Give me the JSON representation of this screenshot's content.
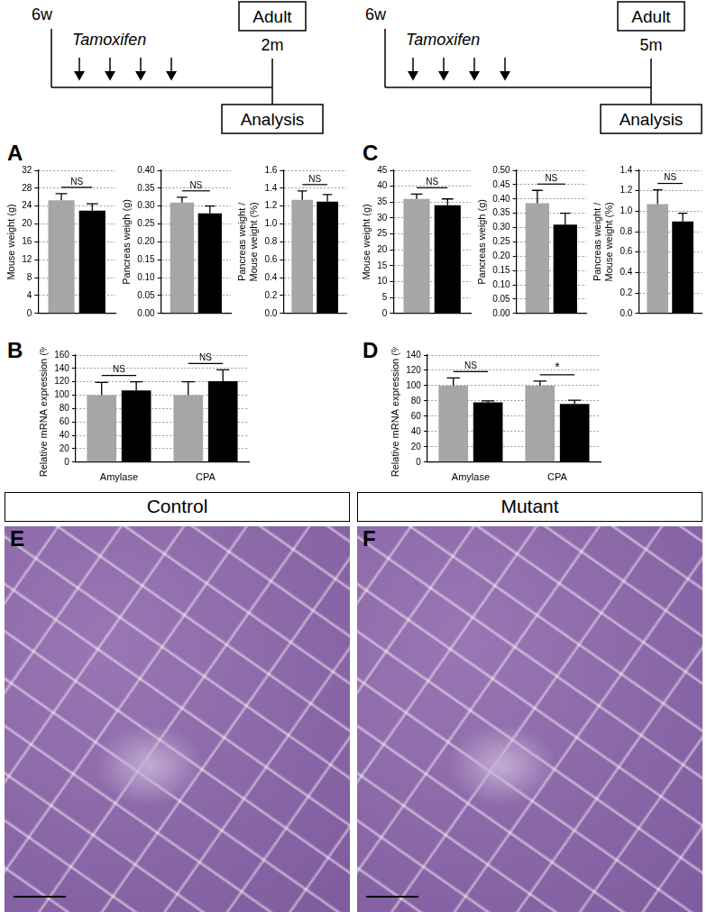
{
  "timelines": [
    {
      "start": "6w",
      "treatment": "Tamoxifen",
      "stage": "Adult",
      "end": "2m",
      "endpoint": "Analysis"
    },
    {
      "start": "6w",
      "treatment": "Tamoxifen",
      "stage": "Adult",
      "end": "5m",
      "endpoint": "Analysis"
    }
  ],
  "chart_data": [
    {
      "panel": "A",
      "type": "bar",
      "y_label": "Mouse weight (g)",
      "categories": [
        null
      ],
      "series": [
        {
          "color": "#a6a6a6",
          "values": [
            25.3
          ],
          "errors": [
            1.5
          ]
        },
        {
          "color": "#000000",
          "values": [
            23.0
          ],
          "errors": [
            1.5
          ]
        }
      ],
      "significance": [
        "NS"
      ],
      "ylim": [
        0,
        32
      ],
      "yticks": [
        0,
        4,
        8,
        12,
        16,
        20,
        24,
        28,
        32
      ],
      "grid": true
    },
    {
      "type": "bar",
      "y_label": "Pancreas weigh (g)",
      "categories": [
        null
      ],
      "series": [
        {
          "color": "#a6a6a6",
          "values": [
            0.31
          ],
          "errors": [
            0.015
          ]
        },
        {
          "color": "#000000",
          "values": [
            0.28
          ],
          "errors": [
            0.02
          ]
        }
      ],
      "significance": [
        "NS"
      ],
      "ylim": [
        0,
        0.4
      ],
      "yticks": [
        {
          "value": 0,
          "label": "0.00"
        },
        {
          "value": 0.05,
          "label": "0.05"
        },
        {
          "value": 0.1,
          "label": "0.10"
        },
        {
          "value": 0.15,
          "label": "0.15"
        },
        {
          "value": 0.2,
          "label": "0.20"
        },
        {
          "value": 0.25,
          "label": "0.25"
        },
        {
          "value": 0.3,
          "label": "0.30"
        },
        {
          "value": 0.35,
          "label": "0.35"
        },
        {
          "value": 0.4,
          "label": "0.40"
        }
      ],
      "grid": true
    },
    {
      "type": "bar",
      "y_label": "Pancreas weight / Mouse weight (%)",
      "categories": [
        null
      ],
      "series": [
        {
          "color": "#a6a6a6",
          "values": [
            1.27
          ],
          "errors": [
            0.1
          ]
        },
        {
          "color": "#000000",
          "values": [
            1.25
          ],
          "errors": [
            0.08
          ]
        }
      ],
      "significance": [
        "NS"
      ],
      "ylim": [
        0,
        1.6
      ],
      "yticks": [
        {
          "value": 0,
          "label": "0.0"
        },
        {
          "value": 0.2,
          "label": "0.2"
        },
        {
          "value": 0.4,
          "label": "0.4"
        },
        {
          "value": 0.6,
          "label": "0.6"
        },
        {
          "value": 0.8,
          "label": "0.8"
        },
        {
          "value": 1,
          "label": "1.0"
        },
        {
          "value": 1.2,
          "label": "1.2"
        },
        {
          "value": 1.4,
          "label": "1.4"
        },
        {
          "value": 1.6,
          "label": "1.6"
        }
      ],
      "grid": true
    },
    {
      "panel": "C",
      "type": "bar",
      "y_label": "Mouse weight (g)",
      "categories": [
        null
      ],
      "series": [
        {
          "color": "#a6a6a6",
          "values": [
            36.0
          ],
          "errors": [
            1.5
          ]
        },
        {
          "color": "#000000",
          "values": [
            34.0
          ],
          "errors": [
            2.0
          ]
        }
      ],
      "significance": [
        "NS"
      ],
      "ylim": [
        0,
        45
      ],
      "yticks": [
        0,
        5,
        10,
        15,
        20,
        25,
        30,
        35,
        40,
        45
      ],
      "grid": true
    },
    {
      "type": "bar",
      "y_label": "Pancreas weigh (g)",
      "categories": [
        null
      ],
      "series": [
        {
          "color": "#a6a6a6",
          "values": [
            0.385
          ],
          "errors": [
            0.045
          ]
        },
        {
          "color": "#000000",
          "values": [
            0.31
          ],
          "errors": [
            0.04
          ]
        }
      ],
      "significance": [
        "NS"
      ],
      "ylim": [
        0,
        0.5
      ],
      "yticks": [
        {
          "value": 0,
          "label": "0.00"
        },
        {
          "value": 0.05,
          "label": "0.05"
        },
        {
          "value": 0.1,
          "label": "0.10"
        },
        {
          "value": 0.15,
          "label": "0.15"
        },
        {
          "value": 0.2,
          "label": "0.20"
        },
        {
          "value": 0.25,
          "label": "0.25"
        },
        {
          "value": 0.3,
          "label": "0.30"
        },
        {
          "value": 0.35,
          "label": "0.35"
        },
        {
          "value": 0.4,
          "label": "0.40"
        },
        {
          "value": 0.45,
          "label": "0.45"
        },
        {
          "value": 0.5,
          "label": "0.50"
        }
      ],
      "grid": true
    },
    {
      "type": "bar",
      "y_label": "Pancreas weight / Mouse weight (%)",
      "categories": [
        null
      ],
      "series": [
        {
          "color": "#a6a6a6",
          "values": [
            1.07
          ],
          "errors": [
            0.14
          ]
        },
        {
          "color": "#000000",
          "values": [
            0.9
          ],
          "errors": [
            0.08
          ]
        }
      ],
      "significance": [
        "NS"
      ],
      "ylim": [
        0,
        1.4
      ],
      "yticks": [
        {
          "value": 0,
          "label": "0.0"
        },
        {
          "value": 0.2,
          "label": "0.2"
        },
        {
          "value": 0.4,
          "label": "0.4"
        },
        {
          "value": 0.6,
          "label": "0.6"
        },
        {
          "value": 0.8,
          "label": "0.8"
        },
        {
          "value": 1,
          "label": "1.0"
        },
        {
          "value": 1.2,
          "label": "1.2"
        },
        {
          "value": 1.4,
          "label": "1.4"
        }
      ],
      "grid": true
    },
    {
      "panel": "B",
      "type": "bar",
      "y_label": "Relative mRNA expression (%)",
      "categories": [
        "Amylase",
        "CPA"
      ],
      "series": [
        {
          "color": "#a6a6a6",
          "values": [
            100,
            100
          ],
          "errors": [
            19,
            20
          ]
        },
        {
          "color": "#000000",
          "values": [
            107,
            121
          ],
          "errors": [
            13,
            17
          ]
        }
      ],
      "significance": [
        "NS",
        "NS"
      ],
      "ylim": [
        0,
        160
      ],
      "yticks": [
        0,
        20,
        40,
        60,
        80,
        100,
        120,
        140,
        160
      ],
      "grid": true
    },
    {
      "panel": "D",
      "type": "bar",
      "y_label": "Relative mRNA expression (%)",
      "categories": [
        "Amylase",
        "CPA"
      ],
      "series": [
        {
          "color": "#a6a6a6",
          "values": [
            100,
            100
          ],
          "errors": [
            10,
            6
          ]
        },
        {
          "color": "#000000",
          "values": [
            78,
            76
          ],
          "errors": [
            2,
            5
          ]
        }
      ],
      "significance": [
        "NS",
        "*"
      ],
      "ylim": [
        0,
        140
      ],
      "yticks": [
        0,
        20,
        40,
        60,
        80,
        100,
        120,
        140
      ],
      "grid": true
    }
  ],
  "images": [
    {
      "panel": "E",
      "title": "Control"
    },
    {
      "panel": "F",
      "title": "Mutant"
    }
  ]
}
